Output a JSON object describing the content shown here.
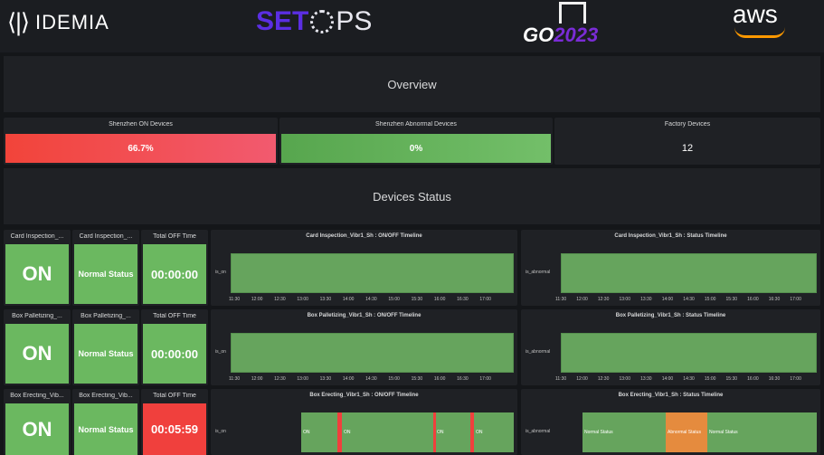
{
  "header": {
    "idemia_mark": "⟨|⟩",
    "idemia_text": "IDEMIA",
    "setops_a": "SET",
    "setops_b": "PS",
    "go_text": "GO",
    "go_year": "2023",
    "aws_text": "aws"
  },
  "rows": {
    "overview": "Overview",
    "devices_status": "Devices Status"
  },
  "overview_stats": [
    {
      "title": "Shenzhen ON Devices",
      "value": "66.7%"
    },
    {
      "title": "Shenzhen Abnormal Devices",
      "value": "0%"
    },
    {
      "title": "Factory Devices",
      "value": "12"
    }
  ],
  "devices": [
    {
      "state_title": "Card Inspection_...",
      "state_value": "ON",
      "status_title": "Card Inspection_...",
      "status_value": "Normal Status",
      "off_title": "Total OFF Time",
      "off_value": "00:00:00",
      "onoff_title": "Card Inspection_Vibr1_Sh : ON/OFF Timeline",
      "onoff_ylabel": "is_on",
      "status_tl_title": "Card Inspection_Vibr1_Sh : Status Timeline",
      "status_tl_ylabel": "is_abnormal"
    },
    {
      "state_title": "Box Palletizing_...",
      "state_value": "ON",
      "status_title": "Box Palletizing_...",
      "status_value": "Normal Status",
      "off_title": "Total OFF Time",
      "off_value": "00:00:00",
      "onoff_title": "Box Palletizing_Vibr1_Sh : ON/OFF Timeline",
      "onoff_ylabel": "is_on",
      "status_tl_title": "Box Palletizing_Vibr1_Sh : Status Timeline",
      "status_tl_ylabel": "is_abnormal"
    },
    {
      "state_title": "Box Erecting_Vib...",
      "state_value": "ON",
      "status_title": "Box Erecting_Vib...",
      "status_value": "Normal Status",
      "off_title": "Total OFF Time",
      "off_value": "00:05:59",
      "onoff_title": "Box Erecting_Vibr1_Sh : ON/OFF Timeline",
      "onoff_ylabel": "is_on",
      "onoff_segments": [
        "ON",
        "ON",
        "ON",
        "ON"
      ],
      "status_tl_title": "Box Erecting_Vibr1_Sh : Status Timeline",
      "status_tl_ylabel": "is_abnormal",
      "status_segments": [
        "Normal Status",
        "Abnormal Status",
        "Normal Status"
      ]
    }
  ],
  "onoff_ticks": [
    "11:30",
    "12:00",
    "12:30",
    "13:00",
    "13:30",
    "14:00",
    "14:30",
    "15:00",
    "15:30",
    "16:00",
    "16:30",
    "17:00"
  ],
  "status_ticks": [
    "11:30",
    "12:00",
    "12:30",
    "13:00",
    "13:30",
    "14:00",
    "14:30",
    "15:00",
    "15:30",
    "16:00",
    "16:30",
    "17:00"
  ],
  "colors": {
    "ok": "#6bb860",
    "alert": "#f0403d",
    "abnormal": "#e58b3e"
  }
}
